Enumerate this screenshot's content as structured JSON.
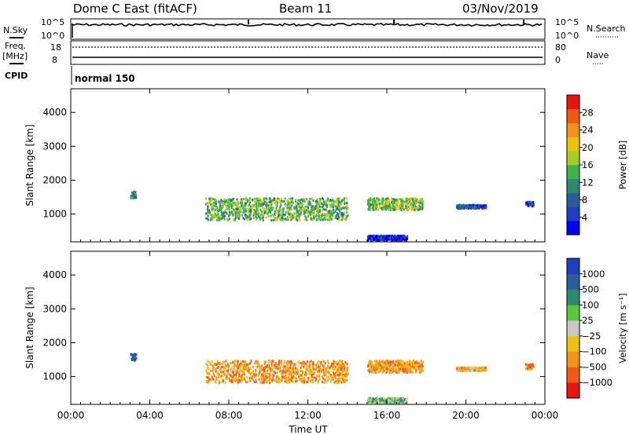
{
  "header": {
    "station": "Dome C East (fitACF)",
    "beam": "Beam 11",
    "date": "03/Nov/2019"
  },
  "panels": {
    "nsky_label": "N.Sky",
    "nsearch_label": "N.Search",
    "freq_label": "Freq.",
    "freq_unit": "[MHz]",
    "nave_label": "Nave",
    "cpid_label": "CPID",
    "cpid_value": "normal 150",
    "nsky_ticks": [
      "10^5",
      "10^0"
    ],
    "nsearch_ticks": [
      "10^5",
      "10^0"
    ],
    "freq_ticks": [
      "18",
      "8"
    ],
    "nave_ticks": [
      "80",
      "0"
    ]
  },
  "chart_data": [
    {
      "type": "heatmap",
      "title": "",
      "xlabel": "",
      "ylabel": "Slant Range [km]",
      "x_ticks": [
        "00:00",
        "04:00",
        "08:00",
        "12:00",
        "16:00",
        "20:00",
        "00:00"
      ],
      "y_ticks": [
        1000,
        2000,
        3000,
        4000
      ],
      "xlim": [
        0,
        24
      ],
      "ylim": [
        180,
        4700
      ],
      "colorbar": {
        "label": "Power [dB]",
        "ticks": [
          "4",
          "8",
          "12",
          "16",
          "20",
          "24",
          "28"
        ],
        "range": [
          0,
          32
        ],
        "colors": [
          "#0000ff",
          "#1f3fbf",
          "#2a5e98",
          "#2e8a6e",
          "#3cb44b",
          "#a6cc2a",
          "#f0c010",
          "#f2921a",
          "#f05a14",
          "#e81410"
        ]
      },
      "clusters": [
        {
          "t0": 6.8,
          "t1": 14.0,
          "r0": 850,
          "r1": 1500,
          "level": 0.45
        },
        {
          "t0": 15.0,
          "t1": 17.8,
          "r0": 1150,
          "r1": 1500,
          "level": 0.5
        },
        {
          "t0": 15.0,
          "t1": 17.0,
          "r0": 250,
          "r1": 400,
          "level": 0.1
        },
        {
          "t0": 3.0,
          "t1": 3.3,
          "r0": 1500,
          "r1": 1700,
          "level": 0.35
        },
        {
          "t0": 19.5,
          "t1": 21.0,
          "r0": 1200,
          "r1": 1300,
          "level": 0.2
        },
        {
          "t0": 23.0,
          "t1": 23.4,
          "r0": 1250,
          "r1": 1400,
          "level": 0.2
        }
      ]
    },
    {
      "type": "heatmap",
      "title": "",
      "xlabel": "Time UT",
      "ylabel": "Slant Range [km]",
      "x_ticks": [
        "00:00",
        "04:00",
        "08:00",
        "12:00",
        "16:00",
        "20:00",
        "00:00"
      ],
      "y_ticks": [
        1000,
        2000,
        3000,
        4000
      ],
      "xlim": [
        0,
        24
      ],
      "ylim": [
        180,
        4700
      ],
      "colorbar": {
        "label": "Velocity [m s⁻¹]",
        "ticks": [
          "1000",
          "500",
          "100",
          "25",
          "−25",
          "−100",
          "−500",
          "−1000"
        ],
        "range": [
          -1250,
          1250
        ],
        "colors": [
          "#e81410",
          "#f05a14",
          "#f2921a",
          "#f0c010",
          "#c8c8c8",
          "#5cc83c",
          "#2e8a6e",
          "#2a5e98",
          "#1f3fbf"
        ]
      },
      "clusters": [
        {
          "t0": 6.8,
          "t1": 14.0,
          "r0": 850,
          "r1": 1500,
          "level": 0.3
        },
        {
          "t0": 15.0,
          "t1": 17.8,
          "r0": 1150,
          "r1": 1500,
          "level": 0.3
        },
        {
          "t0": 15.0,
          "t1": 17.0,
          "r0": 250,
          "r1": 400,
          "level": 0.6
        },
        {
          "t0": 3.0,
          "t1": 3.3,
          "r0": 1500,
          "r1": 1700,
          "level": 0.8
        },
        {
          "t0": 19.5,
          "t1": 21.0,
          "r0": 1200,
          "r1": 1300,
          "level": 0.35
        },
        {
          "t0": 23.0,
          "t1": 23.4,
          "r0": 1250,
          "r1": 1400,
          "level": 0.25
        }
      ]
    }
  ]
}
